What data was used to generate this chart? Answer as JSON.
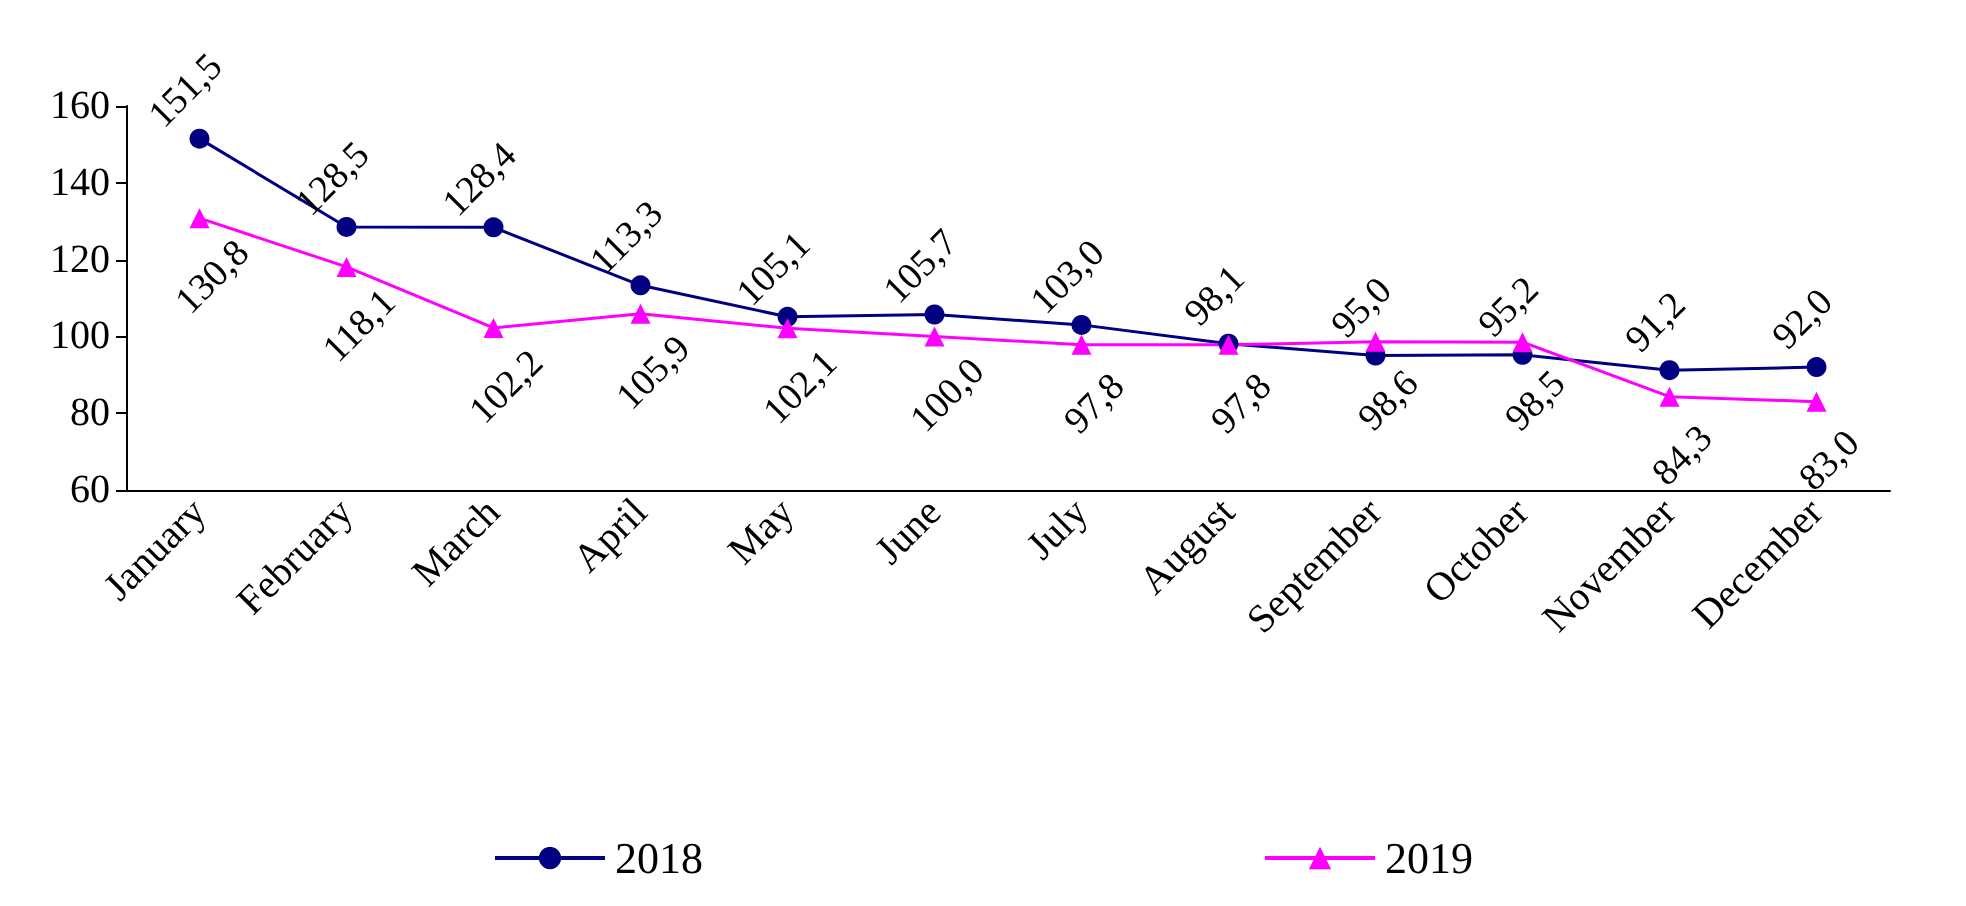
{
  "chart_data": {
    "type": "line",
    "categories": [
      "January",
      "February",
      "March",
      "April",
      "May",
      "June",
      "July",
      "August",
      "September",
      "October",
      "November",
      "December"
    ],
    "series": [
      {
        "name": "2018",
        "color": "#000080",
        "marker": "circle",
        "values": [
          151.5,
          128.5,
          128.4,
          113.3,
          105.1,
          105.7,
          103.0,
          98.1,
          95.0,
          95.2,
          91.2,
          92.0
        ],
        "value_labels": [
          "151,5",
          "128,5",
          "128,4",
          "113,3",
          "105,1",
          "105,7",
          "103,0",
          "98,1",
          "95,0",
          "95,2",
          "91,2",
          "92,0"
        ]
      },
      {
        "name": "2019",
        "color": "#ff00ff",
        "marker": "triangle",
        "values": [
          130.8,
          118.1,
          102.2,
          105.9,
          102.1,
          100.0,
          97.8,
          97.8,
          98.6,
          98.5,
          84.3,
          83.0
        ],
        "value_labels": [
          "130,8",
          "118,1",
          "102,2",
          "105,9",
          "102,1",
          "100,0",
          "97,8",
          "97,8",
          "98,6",
          "98,5",
          "84,3",
          "83,0"
        ]
      }
    ],
    "ylim": [
      60,
      160
    ],
    "yticks": [
      60,
      80,
      100,
      120,
      140,
      160
    ],
    "grid": false,
    "legend": "bottom",
    "line_style": "solid"
  }
}
